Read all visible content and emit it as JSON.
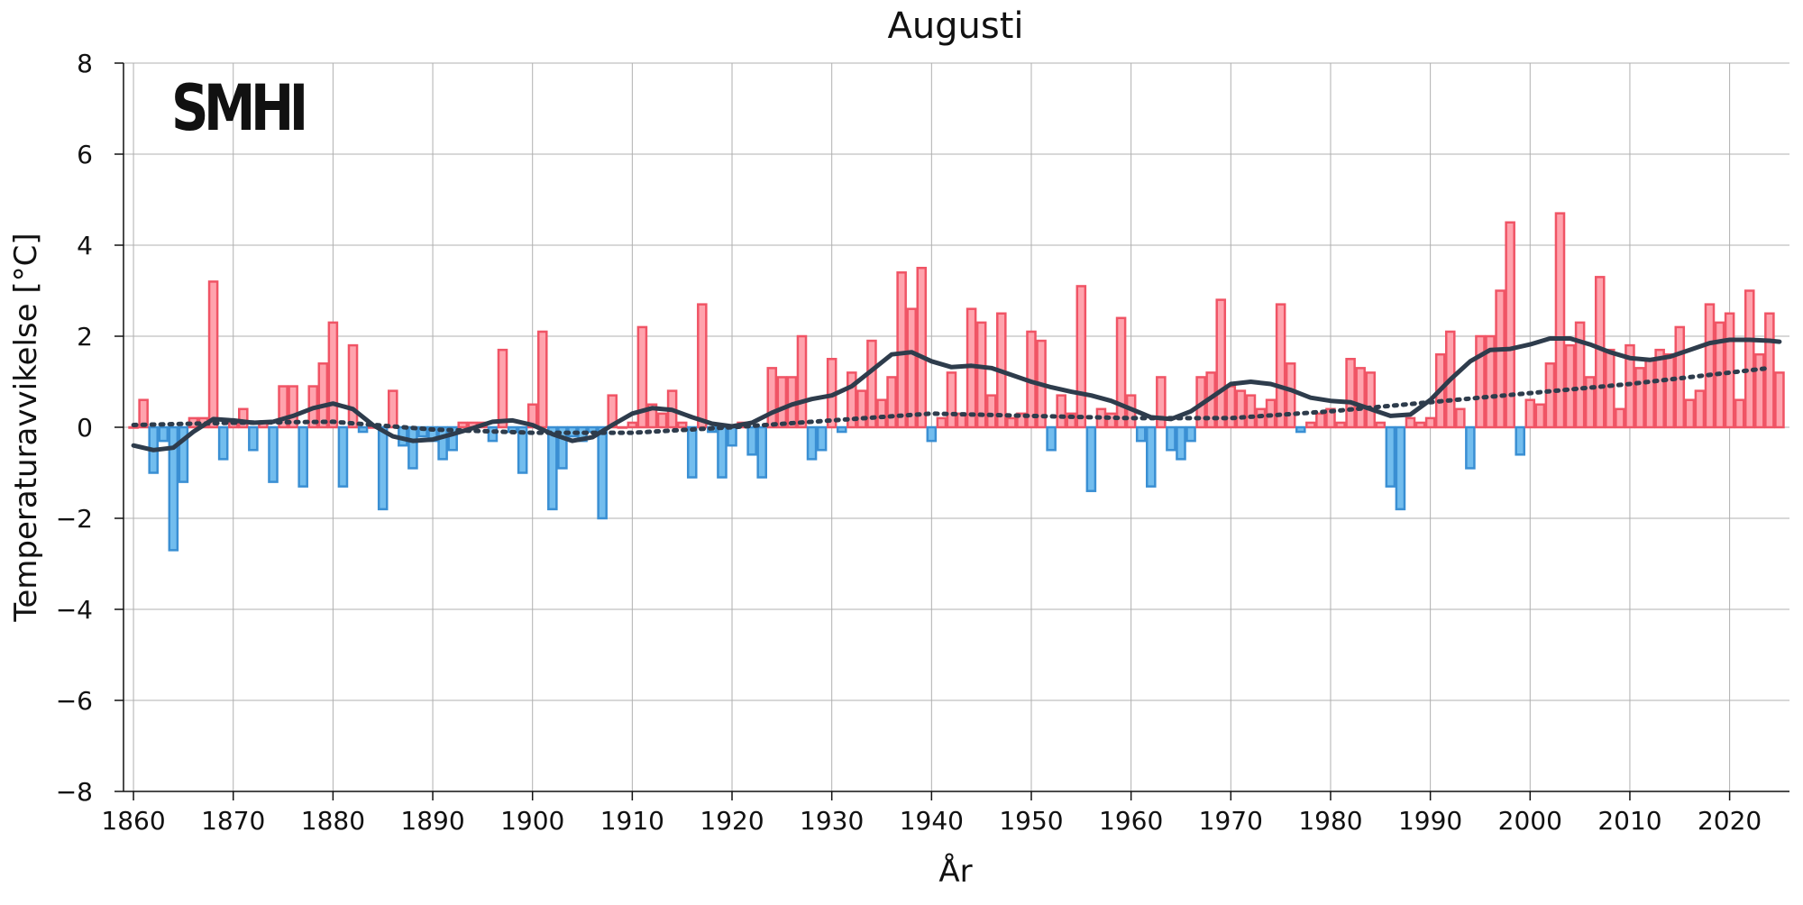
{
  "logo_text": "SMHI",
  "chart_data": {
    "type": "bar",
    "title": "Augusti",
    "xlabel": "År",
    "ylabel": "Temperaturavvikelse [°C]",
    "xlim": [
      1859,
      2026
    ],
    "ylim": [
      -8,
      8
    ],
    "x_ticks": [
      1860,
      1870,
      1880,
      1890,
      1900,
      1910,
      1920,
      1930,
      1940,
      1950,
      1960,
      1970,
      1980,
      1990,
      2000,
      2010,
      2020
    ],
    "y_ticks": [
      -8,
      -6,
      -4,
      -2,
      0,
      2,
      4,
      6,
      8
    ],
    "y_tick_labels": [
      "−8",
      "−6",
      "−4",
      "−2",
      "0",
      "2",
      "4",
      "6",
      "8"
    ],
    "grid": true,
    "colors": {
      "positive_fill": "#ffa3ad",
      "positive_edge": "#f05465",
      "negative_fill": "#72bdee",
      "negative_edge": "#3a8fd3",
      "smooth_line": "#2e3c4c",
      "trend_line": "#2e3c4c",
      "grid": "#b0b0b0"
    },
    "years": [
      1860,
      1861,
      1862,
      1863,
      1864,
      1865,
      1866,
      1867,
      1868,
      1869,
      1870,
      1871,
      1872,
      1873,
      1874,
      1875,
      1876,
      1877,
      1878,
      1879,
      1880,
      1881,
      1882,
      1883,
      1884,
      1885,
      1886,
      1887,
      1888,
      1889,
      1890,
      1891,
      1892,
      1893,
      1894,
      1895,
      1896,
      1897,
      1898,
      1899,
      1900,
      1901,
      1902,
      1903,
      1904,
      1905,
      1906,
      1907,
      1908,
      1909,
      1910,
      1911,
      1912,
      1913,
      1914,
      1915,
      1916,
      1917,
      1918,
      1919,
      1920,
      1921,
      1922,
      1923,
      1924,
      1925,
      1926,
      1927,
      1928,
      1929,
      1930,
      1931,
      1932,
      1933,
      1934,
      1935,
      1936,
      1937,
      1938,
      1939,
      1940,
      1941,
      1942,
      1943,
      1944,
      1945,
      1946,
      1947,
      1948,
      1949,
      1950,
      1951,
      1952,
      1953,
      1954,
      1955,
      1956,
      1957,
      1958,
      1959,
      1960,
      1961,
      1962,
      1963,
      1964,
      1965,
      1966,
      1967,
      1968,
      1969,
      1970,
      1971,
      1972,
      1973,
      1974,
      1975,
      1976,
      1977,
      1978,
      1979,
      1980,
      1981,
      1982,
      1983,
      1984,
      1985,
      1986,
      1987,
      1988,
      1989,
      1990,
      1991,
      1992,
      1993,
      1994,
      1995,
      1996,
      1997,
      1998,
      1999,
      2000,
      2001,
      2002,
      2003,
      2004,
      2005,
      2006,
      2007,
      2008,
      2009,
      2010,
      2011,
      2012,
      2013,
      2014,
      2015,
      2016,
      2017,
      2018,
      2019,
      2020,
      2021,
      2022,
      2023,
      2024,
      2025
    ],
    "values": [
      0.0,
      0.6,
      -1.0,
      -0.3,
      -2.7,
      -1.2,
      0.2,
      0.2,
      3.2,
      -0.7,
      0.1,
      0.4,
      -0.5,
      0.1,
      -1.2,
      0.9,
      0.9,
      -1.3,
      0.9,
      1.4,
      2.3,
      -1.3,
      1.8,
      -0.1,
      0.0,
      -1.8,
      0.8,
      -0.4,
      -0.9,
      -0.2,
      -0.3,
      -0.7,
      -0.5,
      0.1,
      0.1,
      0.1,
      -0.3,
      1.7,
      -0.1,
      -1.0,
      0.5,
      2.1,
      -1.8,
      -0.9,
      -0.2,
      -0.3,
      -0.1,
      -2.0,
      0.7,
      0.0,
      0.1,
      2.2,
      0.5,
      0.3,
      0.8,
      0.1,
      -1.1,
      2.7,
      -0.1,
      -1.1,
      -0.4,
      0.1,
      -0.6,
      -1.1,
      1.3,
      1.1,
      1.1,
      2.0,
      -0.7,
      -0.5,
      1.5,
      -0.1,
      1.2,
      0.8,
      1.9,
      0.6,
      1.1,
      3.4,
      2.6,
      3.5,
      -0.3,
      0.2,
      1.2,
      0.3,
      2.6,
      2.3,
      0.7,
      2.5,
      0.2,
      0.3,
      2.1,
      1.9,
      -0.5,
      0.7,
      0.3,
      3.1,
      -1.4,
      0.4,
      0.3,
      2.4,
      0.7,
      -0.3,
      -1.3,
      1.1,
      -0.5,
      -0.7,
      -0.3,
      1.1,
      1.2,
      2.8,
      0.9,
      0.8,
      0.7,
      0.4,
      0.6,
      2.7,
      1.4,
      -0.1,
      0.1,
      0.3,
      0.4,
      0.1,
      1.5,
      1.3,
      1.2,
      0.1,
      -1.3,
      -1.8,
      0.2,
      0.1,
      0.2,
      1.6,
      2.1,
      0.4,
      -0.9,
      2.0,
      2.0,
      3.0,
      4.5,
      -0.6,
      0.6,
      0.5,
      1.4,
      4.7,
      1.8,
      2.3,
      1.1,
      3.3,
      1.7,
      0.4,
      1.8,
      1.3,
      1.5,
      1.7,
      1.6,
      2.2,
      0.6,
      0.8,
      2.7,
      2.3,
      2.5,
      0.6,
      3.0,
      1.6,
      2.5,
      1.2
    ],
    "smoothed_series": {
      "years": [
        1860,
        1862,
        1864,
        1866,
        1868,
        1870,
        1872,
        1874,
        1876,
        1878,
        1880,
        1882,
        1884,
        1886,
        1888,
        1890,
        1892,
        1894,
        1896,
        1898,
        1900,
        1902,
        1904,
        1906,
        1908,
        1910,
        1912,
        1914,
        1916,
        1918,
        1920,
        1922,
        1924,
        1926,
        1928,
        1930,
        1932,
        1934,
        1936,
        1938,
        1940,
        1942,
        1944,
        1946,
        1948,
        1950,
        1952,
        1954,
        1956,
        1958,
        1960,
        1962,
        1964,
        1966,
        1968,
        1970,
        1972,
        1974,
        1976,
        1978,
        1980,
        1982,
        1984,
        1986,
        1988,
        1990,
        1992,
        1994,
        1996,
        1998,
        2000,
        2002,
        2004,
        2006,
        2008,
        2010,
        2012,
        2014,
        2016,
        2018,
        2020,
        2022,
        2024,
        2025
      ],
      "values": [
        -0.4,
        -0.5,
        -0.45,
        -0.1,
        0.18,
        0.15,
        0.1,
        0.12,
        0.25,
        0.42,
        0.52,
        0.4,
        0.05,
        -0.2,
        -0.3,
        -0.27,
        -0.15,
        -0.02,
        0.12,
        0.15,
        0.05,
        -0.15,
        -0.3,
        -0.22,
        0.05,
        0.3,
        0.42,
        0.38,
        0.22,
        0.08,
        0.02,
        0.1,
        0.32,
        0.5,
        0.62,
        0.7,
        0.9,
        1.25,
        1.6,
        1.65,
        1.45,
        1.32,
        1.35,
        1.3,
        1.15,
        1.0,
        0.88,
        0.78,
        0.7,
        0.58,
        0.4,
        0.22,
        0.18,
        0.35,
        0.65,
        0.95,
        1.0,
        0.95,
        0.82,
        0.65,
        0.58,
        0.55,
        0.4,
        0.25,
        0.28,
        0.6,
        1.05,
        1.45,
        1.7,
        1.72,
        1.82,
        1.95,
        1.95,
        1.82,
        1.65,
        1.52,
        1.48,
        1.55,
        1.7,
        1.85,
        1.92,
        1.92,
        1.9,
        1.88
      ]
    },
    "trend_series": {
      "years": [
        1860,
        1870,
        1880,
        1890,
        1900,
        1910,
        1920,
        1930,
        1940,
        1950,
        1960,
        1970,
        1980,
        1990,
        2000,
        2010,
        2024
      ],
      "values": [
        0.05,
        0.1,
        0.12,
        -0.05,
        -0.12,
        -0.12,
        0.0,
        0.15,
        0.3,
        0.25,
        0.2,
        0.2,
        0.35,
        0.55,
        0.75,
        0.95,
        1.3
      ]
    }
  }
}
